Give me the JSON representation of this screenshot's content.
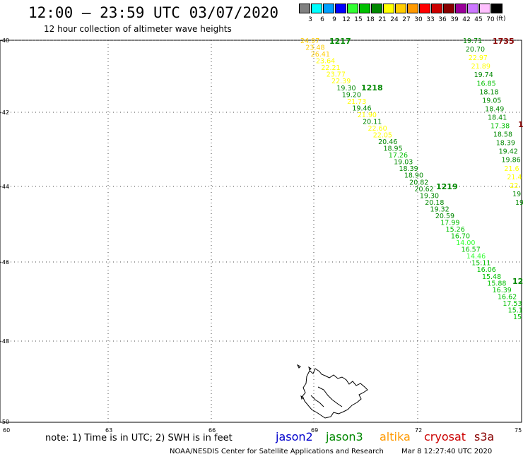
{
  "header": {
    "title": "12:00 — 23:59 UTC 03/07/2020",
    "subtitle": "12 hour collection of altimeter wave heights"
  },
  "legend": {
    "unit": "(ft)",
    "bins": [
      {
        "color": "#808080",
        "label": "3"
      },
      {
        "color": "#00ffff",
        "label": "6"
      },
      {
        "color": "#00a0ff",
        "label": "9"
      },
      {
        "color": "#0000ff",
        "label": "12"
      },
      {
        "color": "#33ff33",
        "label": "15"
      },
      {
        "color": "#00c000",
        "label": "18"
      },
      {
        "color": "#008800",
        "label": "21"
      },
      {
        "color": "#ffff00",
        "label": "24"
      },
      {
        "color": "#ffcc00",
        "label": "27"
      },
      {
        "color": "#ff9900",
        "label": "30"
      },
      {
        "color": "#ff0000",
        "label": "33"
      },
      {
        "color": "#cc0000",
        "label": "36"
      },
      {
        "color": "#880000",
        "label": "39"
      },
      {
        "color": "#990099",
        "label": "42"
      },
      {
        "color": "#cc77ff",
        "label": "45"
      },
      {
        "color": "#ffc0ff",
        "label": "70"
      },
      {
        "color": "#000000",
        "label": ""
      }
    ]
  },
  "axes": {
    "lat_labels": [
      "-40",
      "-42",
      "-44",
      "-46",
      "-48",
      "-50"
    ],
    "lon_labels": [
      "60",
      "63",
      "66",
      "69",
      "72",
      "75"
    ]
  },
  "tracks": [
    {
      "id": "1217",
      "color": "#008800"
    },
    {
      "id": "1218",
      "color": "#008800"
    },
    {
      "id": "1219",
      "color": "#008800"
    },
    {
      "id": "12",
      "color": "#008800"
    },
    {
      "id": "1735",
      "color": "#880000"
    },
    {
      "id": "1",
      "color": "#880000"
    }
  ],
  "track_a_values": [
    {
      "v": "24.97",
      "c": "#ffcc00"
    },
    {
      "v": "23.48",
      "c": "#ffcc00"
    },
    {
      "v": "26.41",
      "c": "#ffcc00"
    },
    {
      "v": "23.64",
      "c": "#ffff00"
    },
    {
      "v": "22.21",
      "c": "#ffff00"
    },
    {
      "v": "23.77",
      "c": "#ffff00"
    },
    {
      "v": "22.39",
      "c": "#ffff00"
    },
    {
      "v": "19.30",
      "c": "#008800"
    },
    {
      "v": "19.20",
      "c": "#008800"
    },
    {
      "v": "21.73",
      "c": "#ffff00"
    },
    {
      "v": "19.46",
      "c": "#008800"
    },
    {
      "v": "21.90",
      "c": "#ffff00"
    },
    {
      "v": "20.11",
      "c": "#008800"
    },
    {
      "v": "22.60",
      "c": "#ffff00"
    },
    {
      "v": "22.05",
      "c": "#ffff00"
    },
    {
      "v": "20.46",
      "c": "#008800"
    },
    {
      "v": "18.95",
      "c": "#008800"
    },
    {
      "v": "17.26",
      "c": "#00c000"
    },
    {
      "v": "19.03",
      "c": "#008800"
    },
    {
      "v": "18.39",
      "c": "#008800"
    },
    {
      "v": "18.90",
      "c": "#008800"
    },
    {
      "v": "20.82",
      "c": "#008800"
    },
    {
      "v": "20.62",
      "c": "#008800"
    },
    {
      "v": "19.30",
      "c": "#008800"
    },
    {
      "v": "20.18",
      "c": "#008800"
    },
    {
      "v": "19.32",
      "c": "#008800"
    },
    {
      "v": "20.59",
      "c": "#008800"
    },
    {
      "v": "17.99",
      "c": "#00c000"
    },
    {
      "v": "15.26",
      "c": "#00c000"
    },
    {
      "v": "16.70",
      "c": "#00c000"
    },
    {
      "v": "14.00",
      "c": "#33ff33"
    },
    {
      "v": "16.57",
      "c": "#00c000"
    },
    {
      "v": "14.46",
      "c": "#33ff33"
    },
    {
      "v": "15.11",
      "c": "#00c000"
    },
    {
      "v": "16.06",
      "c": "#00c000"
    },
    {
      "v": "15.48",
      "c": "#00c000"
    },
    {
      "v": "15.88",
      "c": "#00c000"
    },
    {
      "v": "16.39",
      "c": "#00c000"
    },
    {
      "v": "16.62",
      "c": "#00c000"
    },
    {
      "v": "17.53",
      "c": "#00c000"
    },
    {
      "v": "15.1",
      "c": "#00c000"
    },
    {
      "v": "15",
      "c": "#00c000"
    }
  ],
  "track_b_values": [
    {
      "v": "19.71",
      "c": "#008800"
    },
    {
      "v": "20.70",
      "c": "#008800"
    },
    {
      "v": "22.97",
      "c": "#ffff00"
    },
    {
      "v": "21.89",
      "c": "#ffff00"
    },
    {
      "v": "19.74",
      "c": "#008800"
    },
    {
      "v": "16.85",
      "c": "#00c000"
    },
    {
      "v": "18.18",
      "c": "#008800"
    },
    {
      "v": "19.05",
      "c": "#008800"
    },
    {
      "v": "18.49",
      "c": "#008800"
    },
    {
      "v": "18.41",
      "c": "#008800"
    },
    {
      "v": "17.38",
      "c": "#00c000"
    },
    {
      "v": "18.58",
      "c": "#008800"
    },
    {
      "v": "18.39",
      "c": "#008800"
    },
    {
      "v": "19.42",
      "c": "#008800"
    },
    {
      "v": "19.86",
      "c": "#008800"
    },
    {
      "v": "21.6",
      "c": "#ffff00"
    },
    {
      "v": "21.4",
      "c": "#ffff00"
    },
    {
      "v": "22.",
      "c": "#ffff00"
    },
    {
      "v": "19",
      "c": "#008800"
    },
    {
      "v": "19",
      "c": "#008800"
    }
  ],
  "footer": {
    "note": "note: 1) Time is in UTC; 2) SWH is in feet",
    "satellites": [
      {
        "name": "jason2",
        "color": "#0000cc"
      },
      {
        "name": "jason3",
        "color": "#008800"
      },
      {
        "name": "altika",
        "color": "#ff9900"
      },
      {
        "name": "cryosat",
        "color": "#cc0000"
      },
      {
        "name": "s3a",
        "color": "#880000"
      }
    ],
    "credit": "NOAA/NESDIS Center for Satellite Applications and Research",
    "timestamp": "Mar  8 12:27:40 UTC 2020"
  }
}
